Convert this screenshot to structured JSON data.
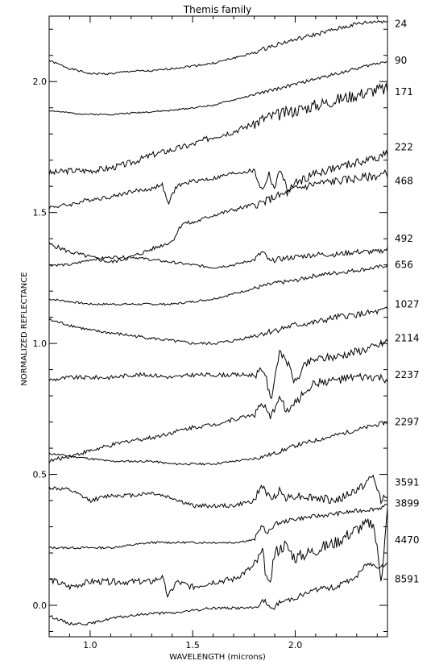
{
  "chart_data": {
    "type": "line",
    "title": "Themis family",
    "xlabel": "WAVELENGTH (microns)",
    "ylabel": "NORMALIZED REFLECTANCE",
    "xlim": [
      0.8,
      2.45
    ],
    "ylim": [
      -0.12,
      2.25
    ],
    "xticks": [
      {
        "v": 1.0,
        "label": "1.0"
      },
      {
        "v": 1.5,
        "label": "1.5"
      },
      {
        "v": 2.0,
        "label": "2.0"
      }
    ],
    "yticks": [
      {
        "v": 0.0,
        "label": "0.0"
      },
      {
        "v": 0.5,
        "label": "0.5"
      },
      {
        "v": 1.0,
        "label": "1.0"
      },
      {
        "v": 1.5,
        "label": "1.5"
      },
      {
        "v": 2.0,
        "label": "2.0"
      }
    ],
    "grid": false,
    "legend": "labels at right end of each spectrum",
    "series": [
      {
        "name": "24",
        "label_y": 2.22,
        "x": [
          0.8,
          0.9,
          1.0,
          1.1,
          1.2,
          1.3,
          1.4,
          1.5,
          1.6,
          1.7,
          1.8,
          1.9,
          2.0,
          2.1,
          2.2,
          2.3,
          2.4,
          2.45
        ],
        "y": [
          2.08,
          2.05,
          2.03,
          2.03,
          2.04,
          2.04,
          2.05,
          2.06,
          2.07,
          2.09,
          2.11,
          2.14,
          2.16,
          2.18,
          2.2,
          2.22,
          2.23,
          2.23
        ],
        "noise": 0.004
      },
      {
        "name": "90",
        "label_y": 2.08,
        "x": [
          0.8,
          0.9,
          1.0,
          1.1,
          1.2,
          1.3,
          1.4,
          1.5,
          1.6,
          1.7,
          1.8,
          1.9,
          2.0,
          2.1,
          2.2,
          2.3,
          2.4,
          2.45
        ],
        "y": [
          1.89,
          1.88,
          1.875,
          1.875,
          1.88,
          1.885,
          1.89,
          1.9,
          1.91,
          1.93,
          1.95,
          1.97,
          1.99,
          2.01,
          2.03,
          2.05,
          2.07,
          2.08
        ],
        "noise": 0.003
      },
      {
        "name": "171",
        "label_y": 1.96,
        "x": [
          0.8,
          0.9,
          1.0,
          1.1,
          1.2,
          1.3,
          1.4,
          1.5,
          1.6,
          1.7,
          1.8,
          1.85,
          1.9,
          1.95,
          2.0,
          2.1,
          2.2,
          2.3,
          2.4,
          2.45
        ],
        "y": [
          1.65,
          1.66,
          1.66,
          1.67,
          1.69,
          1.72,
          1.74,
          1.76,
          1.79,
          1.81,
          1.84,
          1.86,
          1.87,
          1.88,
          1.89,
          1.91,
          1.93,
          1.95,
          1.97,
          1.97
        ],
        "noise": 0.012
      },
      {
        "name": "222",
        "label_y": 1.75,
        "x": [
          0.8,
          0.9,
          1.0,
          1.1,
          1.2,
          1.3,
          1.35,
          1.38,
          1.42,
          1.5,
          1.6,
          1.7,
          1.8,
          1.84,
          1.87,
          1.9,
          1.93,
          1.96,
          2.0,
          2.05,
          2.1,
          2.2,
          2.3,
          2.4,
          2.45
        ],
        "y": [
          1.52,
          1.53,
          1.55,
          1.56,
          1.58,
          1.59,
          1.61,
          1.53,
          1.6,
          1.62,
          1.63,
          1.65,
          1.66,
          1.58,
          1.65,
          1.59,
          1.67,
          1.58,
          1.61,
          1.63,
          1.65,
          1.67,
          1.69,
          1.71,
          1.73
        ],
        "noise": 0.008
      },
      {
        "name": "468",
        "label_y": 1.62,
        "x": [
          0.8,
          0.9,
          1.0,
          1.1,
          1.2,
          1.3,
          1.4,
          1.45,
          1.5,
          1.6,
          1.7,
          1.8,
          1.85,
          1.9,
          1.95,
          2.0,
          2.1,
          2.2,
          2.3,
          2.4,
          2.45
        ],
        "y": [
          1.38,
          1.35,
          1.33,
          1.31,
          1.33,
          1.36,
          1.39,
          1.46,
          1.46,
          1.49,
          1.51,
          1.53,
          1.54,
          1.56,
          1.57,
          1.59,
          1.61,
          1.62,
          1.63,
          1.64,
          1.65
        ],
        "noise": 0.008
      },
      {
        "name": "492",
        "label_y": 1.4,
        "x": [
          0.8,
          0.9,
          1.0,
          1.1,
          1.2,
          1.3,
          1.4,
          1.5,
          1.6,
          1.7,
          1.8,
          1.84,
          1.88,
          1.9,
          2.0,
          2.1,
          2.2,
          2.3,
          2.4,
          2.45
        ],
        "y": [
          1.3,
          1.3,
          1.32,
          1.33,
          1.33,
          1.32,
          1.31,
          1.3,
          1.29,
          1.3,
          1.32,
          1.35,
          1.31,
          1.32,
          1.33,
          1.34,
          1.34,
          1.35,
          1.35,
          1.36
        ],
        "noise": 0.005
      },
      {
        "name": "656",
        "label_y": 1.3,
        "x": [
          0.8,
          0.9,
          1.0,
          1.1,
          1.2,
          1.3,
          1.4,
          1.5,
          1.6,
          1.7,
          1.8,
          1.9,
          2.0,
          2.1,
          2.2,
          2.3,
          2.4,
          2.45
        ],
        "y": [
          1.17,
          1.16,
          1.15,
          1.15,
          1.15,
          1.15,
          1.15,
          1.16,
          1.17,
          1.19,
          1.21,
          1.23,
          1.24,
          1.26,
          1.27,
          1.28,
          1.29,
          1.3
        ],
        "noise": 0.004
      },
      {
        "name": "1027",
        "label_y": 1.15,
        "x": [
          0.8,
          0.9,
          1.0,
          1.1,
          1.2,
          1.3,
          1.4,
          1.5,
          1.6,
          1.7,
          1.8,
          1.9,
          2.0,
          2.1,
          2.2,
          2.3,
          2.4,
          2.45
        ],
        "y": [
          1.09,
          1.07,
          1.05,
          1.04,
          1.03,
          1.02,
          1.01,
          1.0,
          1.0,
          1.01,
          1.03,
          1.05,
          1.07,
          1.08,
          1.1,
          1.11,
          1.12,
          1.13
        ],
        "noise": 0.006
      },
      {
        "name": "2114",
        "label_y": 1.02,
        "x": [
          0.8,
          0.9,
          1.0,
          1.1,
          1.2,
          1.3,
          1.4,
          1.5,
          1.6,
          1.7,
          1.8,
          1.85,
          1.88,
          1.92,
          1.95,
          2.0,
          2.05,
          2.1,
          2.2,
          2.3,
          2.4,
          2.45
        ],
        "y": [
          0.86,
          0.87,
          0.87,
          0.87,
          0.88,
          0.88,
          0.87,
          0.88,
          0.88,
          0.88,
          0.88,
          0.9,
          0.78,
          0.96,
          0.95,
          0.85,
          0.92,
          0.94,
          0.95,
          0.97,
          0.99,
          1.01
        ],
        "noise": 0.008
      },
      {
        "name": "2237",
        "label_y": 0.88,
        "x": [
          0.8,
          0.9,
          1.0,
          1.1,
          1.2,
          1.3,
          1.4,
          1.5,
          1.6,
          1.7,
          1.8,
          1.84,
          1.88,
          1.92,
          1.96,
          2.0,
          2.05,
          2.1,
          2.2,
          2.3,
          2.4,
          2.45
        ],
        "y": [
          0.55,
          0.57,
          0.59,
          0.61,
          0.63,
          0.64,
          0.66,
          0.68,
          0.69,
          0.71,
          0.73,
          0.77,
          0.71,
          0.8,
          0.74,
          0.77,
          0.82,
          0.85,
          0.86,
          0.87,
          0.87,
          0.86
        ],
        "noise": 0.008
      },
      {
        "name": "2297",
        "label_y": 0.7,
        "x": [
          0.8,
          0.9,
          1.0,
          1.1,
          1.2,
          1.3,
          1.4,
          1.5,
          1.6,
          1.7,
          1.8,
          1.9,
          2.0,
          2.1,
          2.2,
          2.3,
          2.4,
          2.45
        ],
        "y": [
          0.58,
          0.57,
          0.56,
          0.55,
          0.55,
          0.55,
          0.54,
          0.54,
          0.54,
          0.55,
          0.56,
          0.58,
          0.61,
          0.63,
          0.65,
          0.67,
          0.69,
          0.7
        ],
        "noise": 0.004
      },
      {
        "name": "3591",
        "label_y": 0.47,
        "x": [
          0.8,
          0.9,
          1.0,
          1.1,
          1.2,
          1.3,
          1.4,
          1.5,
          1.6,
          1.7,
          1.8,
          1.84,
          1.88,
          1.92,
          1.96,
          2.0,
          2.1,
          2.2,
          2.3,
          2.38,
          2.42,
          2.45
        ],
        "y": [
          0.45,
          0.44,
          0.4,
          0.42,
          0.42,
          0.43,
          0.41,
          0.38,
          0.38,
          0.38,
          0.4,
          0.46,
          0.4,
          0.44,
          0.41,
          0.42,
          0.41,
          0.4,
          0.44,
          0.49,
          0.4,
          0.43
        ],
        "noise": 0.008
      },
      {
        "name": "3899",
        "label_y": 0.39,
        "x": [
          0.8,
          0.9,
          1.0,
          1.1,
          1.2,
          1.3,
          1.4,
          1.5,
          1.6,
          1.7,
          1.8,
          1.84,
          1.86,
          1.9,
          2.0,
          2.1,
          2.2,
          2.3,
          2.4,
          2.45
        ],
        "y": [
          0.22,
          0.22,
          0.22,
          0.22,
          0.23,
          0.24,
          0.24,
          0.24,
          0.24,
          0.24,
          0.25,
          0.31,
          0.27,
          0.31,
          0.33,
          0.34,
          0.35,
          0.36,
          0.37,
          0.38
        ],
        "noise": 0.004
      },
      {
        "name": "4470",
        "label_y": 0.25,
        "x": [
          0.8,
          0.9,
          1.0,
          1.1,
          1.2,
          1.3,
          1.35,
          1.38,
          1.42,
          1.5,
          1.6,
          1.7,
          1.8,
          1.84,
          1.87,
          1.9,
          1.95,
          2.0,
          2.1,
          2.2,
          2.3,
          2.38,
          2.42,
          2.45
        ],
        "y": [
          0.1,
          0.07,
          0.09,
          0.09,
          0.09,
          0.09,
          0.11,
          0.03,
          0.09,
          0.07,
          0.09,
          0.1,
          0.15,
          0.2,
          0.06,
          0.2,
          0.23,
          0.18,
          0.21,
          0.24,
          0.29,
          0.32,
          0.1,
          0.36
        ],
        "noise": 0.012
      },
      {
        "name": "8591",
        "label_y": 0.1,
        "x": [
          0.8,
          0.9,
          1.0,
          1.1,
          1.2,
          1.3,
          1.4,
          1.5,
          1.6,
          1.7,
          1.8,
          1.85,
          1.88,
          1.92,
          2.0,
          2.1,
          2.2,
          2.3,
          2.35,
          2.4,
          2.45
        ],
        "y": [
          -0.04,
          -0.07,
          -0.07,
          -0.05,
          -0.04,
          -0.03,
          -0.03,
          -0.02,
          -0.01,
          -0.01,
          -0.01,
          0.02,
          -0.02,
          0.01,
          0.03,
          0.06,
          0.07,
          0.11,
          0.16,
          0.15,
          0.16
        ],
        "noise": 0.005
      }
    ]
  }
}
